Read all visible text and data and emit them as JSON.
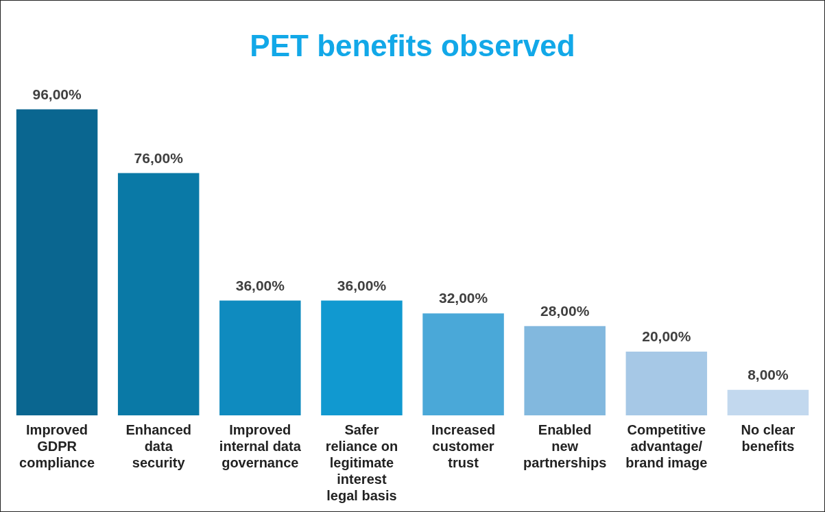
{
  "chart_data": {
    "type": "bar",
    "title": "PET benefits observed",
    "categories": [
      "Improved GDPR compliance",
      "Enhanced data security",
      "Improved internal data governance",
      "Safer reliance on legitimate interest legal basis",
      "Increased customer trust",
      "Enabled new partnerships",
      "Competitive advantage/ brand image",
      "No clear benefits"
    ],
    "values": [
      96,
      76,
      36,
      36,
      32,
      28,
      20,
      8
    ],
    "colors": [
      "#0a6690",
      "#0a79a6",
      "#0f8bbf",
      "#1199d0",
      "#4aa8d8",
      "#82b8de",
      "#a6c8e6",
      "#c2d8ee"
    ],
    "value_labels": [
      "96,00%",
      "76,00%",
      "36,00%",
      "36,00%",
      "32,00%",
      "28,00%",
      "20,00%",
      "8,00%"
    ],
    "grid": false,
    "legend": false
  }
}
